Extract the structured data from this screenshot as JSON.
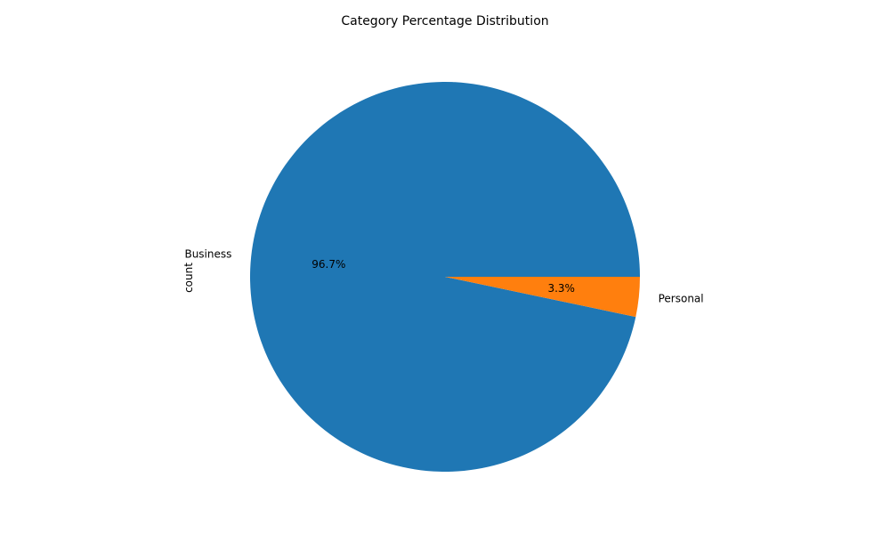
{
  "chart_data": {
    "type": "pie",
    "title": "Category Percentage Distribution",
    "ylabel": "count",
    "slices": [
      {
        "label": "Business",
        "percent": 96.7,
        "pct_label": "96.7%",
        "color": "#1f77b4"
      },
      {
        "label": "Personal",
        "percent": 3.3,
        "pct_label": "3.3%",
        "color": "#ff7f0e"
      }
    ],
    "start_angle_deg": 0,
    "direction": "counterclockwise"
  }
}
